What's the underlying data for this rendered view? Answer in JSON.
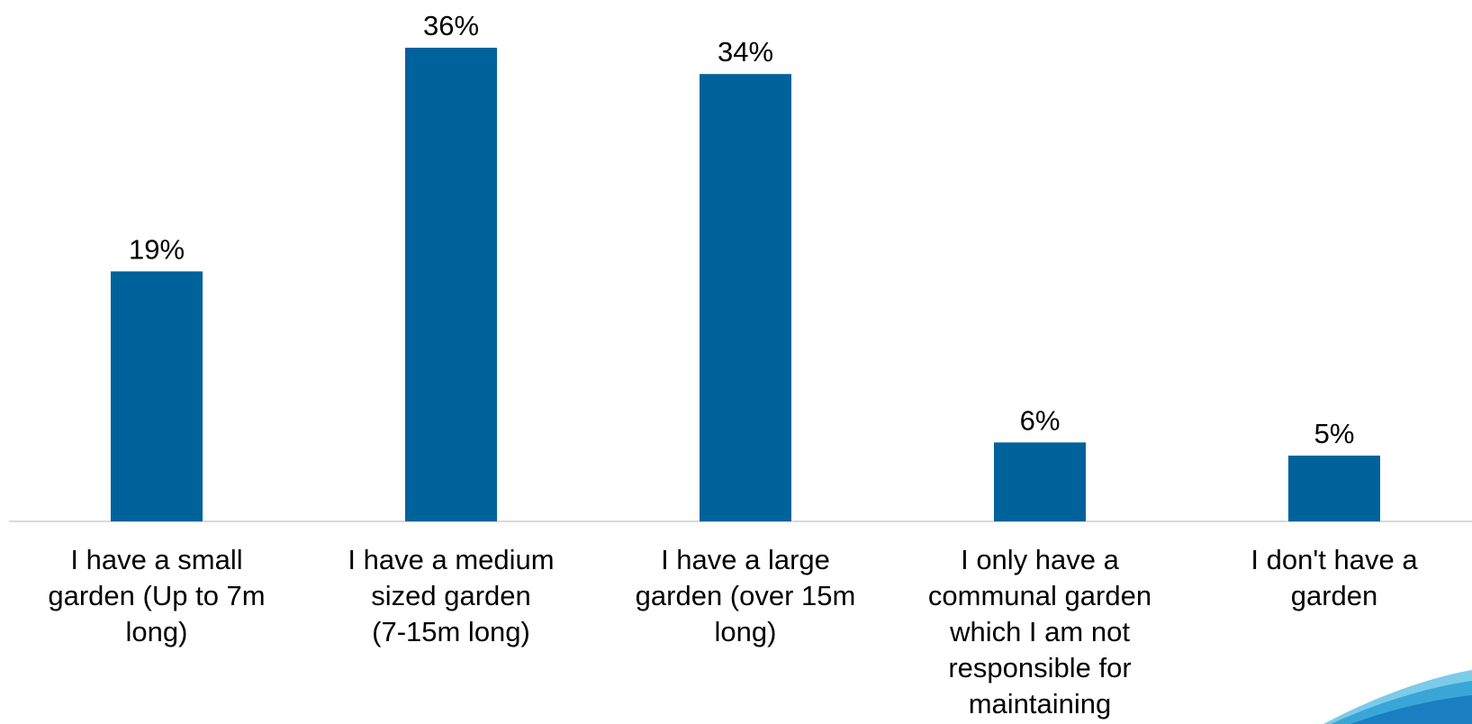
{
  "chart_data": {
    "type": "bar",
    "categories": [
      "I have a small garden (Up to 7m long)",
      "I have a medium sized garden (7-15m long)",
      "I have a large garden (over 15m long)",
      "I only have a communal garden which I am not responsible for maintaining",
      "I don't have a garden"
    ],
    "category_lines": [
      [
        "I have a small",
        "garden (Up to 7m",
        "long)"
      ],
      [
        "I have a medium",
        "sized garden",
        "(7-15m long)"
      ],
      [
        "I have a large",
        "garden (over 15m",
        "long)"
      ],
      [
        "I only have a",
        "communal garden",
        "which I am not",
        "responsible for",
        "maintaining"
      ],
      [
        "I don't have a",
        "garden"
      ]
    ],
    "values": [
      19,
      36,
      34,
      6,
      5
    ],
    "data_labels": [
      "19%",
      "36%",
      "34%",
      "6%",
      "5%"
    ],
    "title": "",
    "xlabel": "",
    "ylabel": "",
    "ylim": [
      0,
      36
    ],
    "grid": false,
    "legend": "none",
    "bar_color": "#00629b",
    "axis_color": "#d9d9d9"
  },
  "decoration": {
    "swoosh_colors": [
      "#1a7fc1",
      "#3aa6d8",
      "#7ccbe8"
    ]
  }
}
